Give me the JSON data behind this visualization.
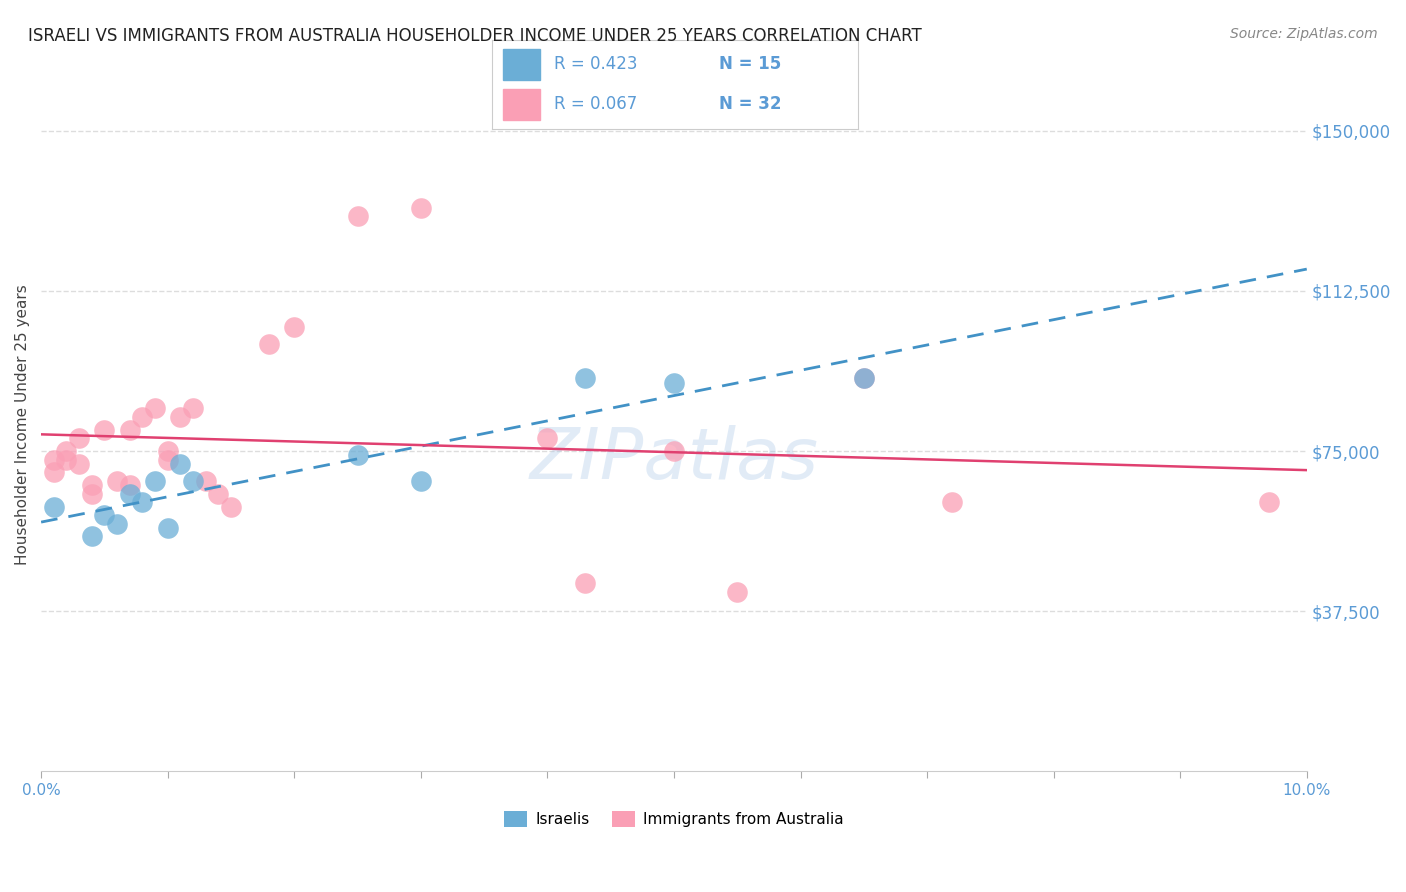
{
  "title": "ISRAELI VS IMMIGRANTS FROM AUSTRALIA HOUSEHOLDER INCOME UNDER 25 YEARS CORRELATION CHART",
  "source": "Source: ZipAtlas.com",
  "ylabel": "Householder Income Under 25 years",
  "ytick_labels": [
    "$37,500",
    "$75,000",
    "$112,500",
    "$150,000"
  ],
  "ytick_values": [
    37500,
    75000,
    112500,
    150000
  ],
  "ymin": 0,
  "ymax": 162500,
  "xmin": 0.0,
  "xmax": 0.1,
  "legend_israelis_R": "R = 0.423",
  "legend_israelis_N": "N = 15",
  "legend_australia_R": "R = 0.067",
  "legend_australia_N": "N = 32",
  "legend_label_israelis": "Israelis",
  "legend_label_australia": "Immigrants from Australia",
  "color_israelis": "#6baed6",
  "color_australia": "#fa9fb5",
  "color_trend_israelis": "#4292c6",
  "color_trend_australia": "#e04070",
  "color_yticks": "#5b9bd5",
  "color_xticks_label": "#5b9bd5",
  "color_title": "#222222",
  "color_source": "#888888",
  "watermark": "ZIPatlas",
  "israelis_x": [
    0.001,
    0.004,
    0.005,
    0.006,
    0.007,
    0.008,
    0.009,
    0.01,
    0.011,
    0.012,
    0.025,
    0.03,
    0.043,
    0.05,
    0.065
  ],
  "israelis_y": [
    62000,
    55000,
    60000,
    58000,
    65000,
    63000,
    68000,
    57000,
    72000,
    68000,
    74000,
    68000,
    92000,
    91000,
    92000
  ],
  "australia_x": [
    0.001,
    0.001,
    0.002,
    0.002,
    0.003,
    0.003,
    0.004,
    0.004,
    0.005,
    0.006,
    0.007,
    0.007,
    0.008,
    0.009,
    0.01,
    0.01,
    0.011,
    0.012,
    0.013,
    0.014,
    0.015,
    0.018,
    0.02,
    0.025,
    0.03,
    0.04,
    0.043,
    0.05,
    0.055,
    0.065,
    0.072,
    0.097
  ],
  "australia_y": [
    73000,
    70000,
    75000,
    73000,
    78000,
    72000,
    67000,
    65000,
    80000,
    68000,
    80000,
    67000,
    83000,
    85000,
    75000,
    73000,
    83000,
    85000,
    68000,
    65000,
    62000,
    100000,
    104000,
    130000,
    132000,
    78000,
    44000,
    75000,
    42000,
    92000,
    63000,
    63000
  ],
  "grid_color": "#dddddd",
  "background_color": "#ffffff"
}
